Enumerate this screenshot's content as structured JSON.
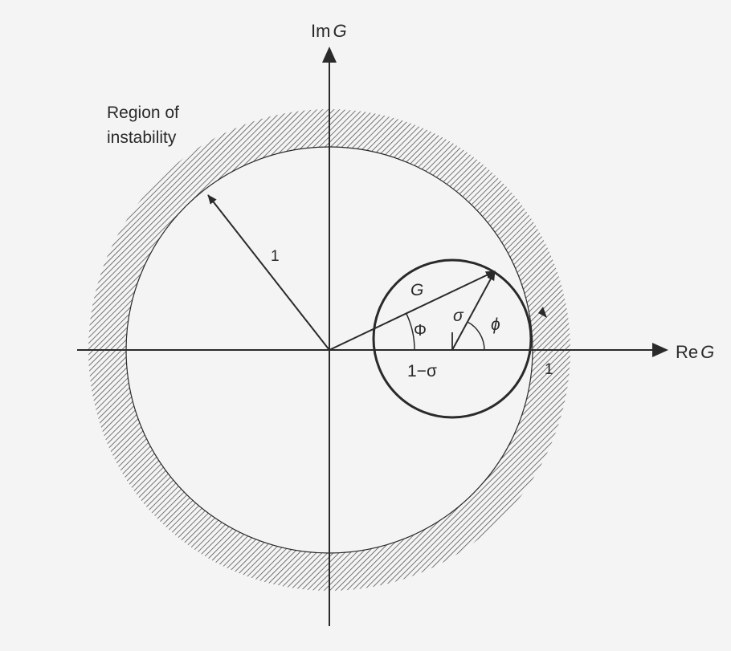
{
  "colors": {
    "background": "#f4f4f4",
    "ink": "#2a2a2a",
    "hatch": "#555555"
  },
  "labels": {
    "imaginary_axis_prefix": "Im",
    "imaginary_axis_var": "G",
    "real_axis_prefix": "Re",
    "real_axis_var": "G",
    "region_line1": "Region of",
    "region_line2": "instability",
    "unit_radius": "1",
    "vector_g": "G",
    "sigma": "σ",
    "angle_phi_upper": "Φ",
    "angle_phi_lower": "ϕ",
    "center_offset": "1−σ",
    "real_axis_one": "1"
  }
}
